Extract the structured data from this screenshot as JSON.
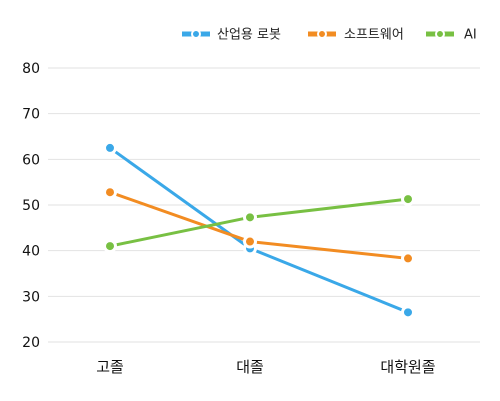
{
  "chart_data": {
    "type": "line",
    "categories": [
      "고졸",
      "대졸",
      "대학원졸"
    ],
    "series": [
      {
        "name": "산업용 로봇",
        "color": "#3aa8e8",
        "values": [
          62.5,
          40.5,
          26.5
        ]
      },
      {
        "name": "소프트웨어",
        "color": "#f28c22",
        "values": [
          52.8,
          42.0,
          38.3
        ]
      },
      {
        "name": "AI",
        "color": "#78c043",
        "values": [
          41.0,
          47.3,
          51.3
        ]
      }
    ],
    "title": "",
    "xlabel": "",
    "ylabel": "",
    "ylim": [
      20,
      80
    ],
    "yticks": [
      20,
      30,
      40,
      50,
      60,
      70,
      80
    ],
    "grid": true,
    "legend": "top-right"
  }
}
